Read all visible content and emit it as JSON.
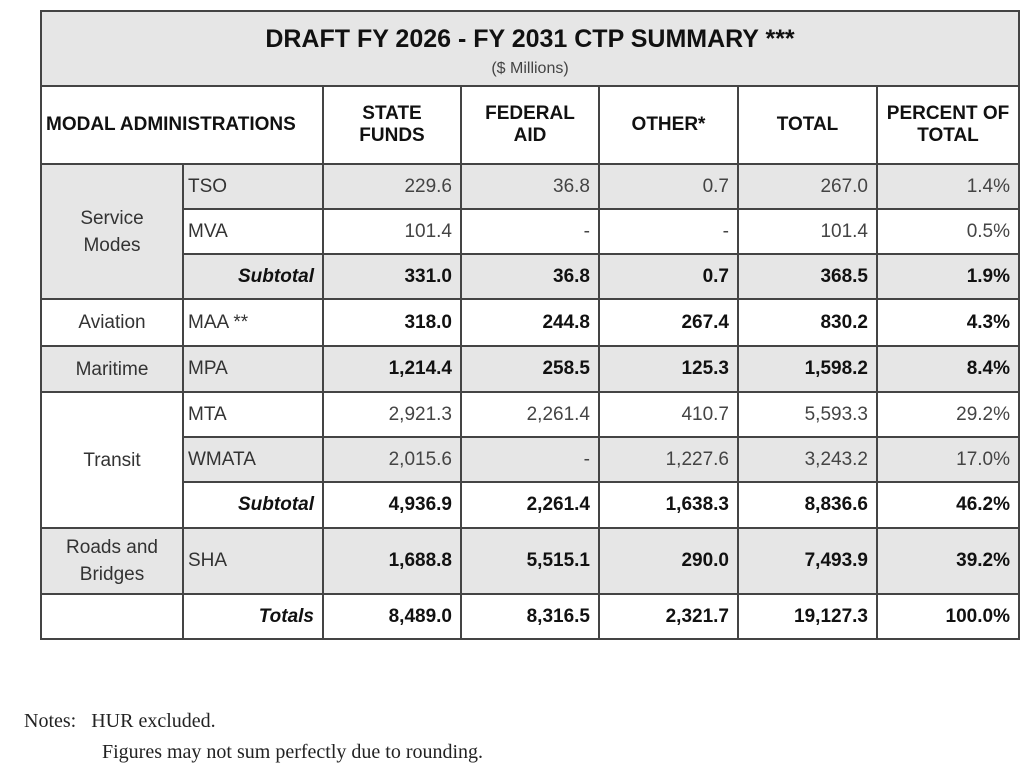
{
  "title": "DRAFT FY 2026 - FY 2031 CTP SUMMARY ***",
  "subtitle": "($ Millions)",
  "headers": {
    "modal": "MODAL ADMINISTRATIONS",
    "state": "STATE FUNDS",
    "federal": "FEDERAL AID",
    "other": "OTHER*",
    "total": "TOTAL",
    "percent": "PERCENT OF TOTAL"
  },
  "groups": {
    "service": "Service Modes",
    "aviation": "Aviation",
    "maritime": "Maritime",
    "transit": "Transit",
    "roads": "Roads and Bridges"
  },
  "rows": [
    {
      "label": "TSO",
      "values": [
        "229.6",
        "36.8",
        "0.7",
        "267.0",
        "1.4%"
      ]
    },
    {
      "label": "MVA",
      "values": [
        "101.4",
        "-",
        "-",
        "101.4",
        "0.5%"
      ]
    },
    {
      "label": "Subtotal",
      "values": [
        "331.0",
        "36.8",
        "0.7",
        "368.5",
        "1.9%"
      ]
    },
    {
      "label": "MAA **",
      "values": [
        "318.0",
        "244.8",
        "267.4",
        "830.2",
        "4.3%"
      ]
    },
    {
      "label": "MPA",
      "values": [
        "1,214.4",
        "258.5",
        "125.3",
        "1,598.2",
        "8.4%"
      ]
    },
    {
      "label": "MTA",
      "values": [
        "2,921.3",
        "2,261.4",
        "410.7",
        "5,593.3",
        "29.2%"
      ]
    },
    {
      "label": "WMATA",
      "values": [
        "2,015.6",
        "-",
        "1,227.6",
        "3,243.2",
        "17.0%"
      ]
    },
    {
      "label": "Subtotal",
      "values": [
        "4,936.9",
        "2,261.4",
        "1,638.3",
        "8,836.6",
        "46.2%"
      ]
    },
    {
      "label": "SHA",
      "values": [
        "1,688.8",
        "5,515.1",
        "290.0",
        "7,493.9",
        "39.2%"
      ]
    },
    {
      "label": "Totals",
      "values": [
        "8,489.0",
        "8,316.5",
        "2,321.7",
        "19,127.3",
        "100.0%"
      ]
    }
  ],
  "notes": {
    "label": "Notes:",
    "line1": "HUR excluded.",
    "line2": "Figures may not sum perfectly due to rounding."
  },
  "colors": {
    "shade": "#e6e6e6",
    "border": "#444444"
  }
}
